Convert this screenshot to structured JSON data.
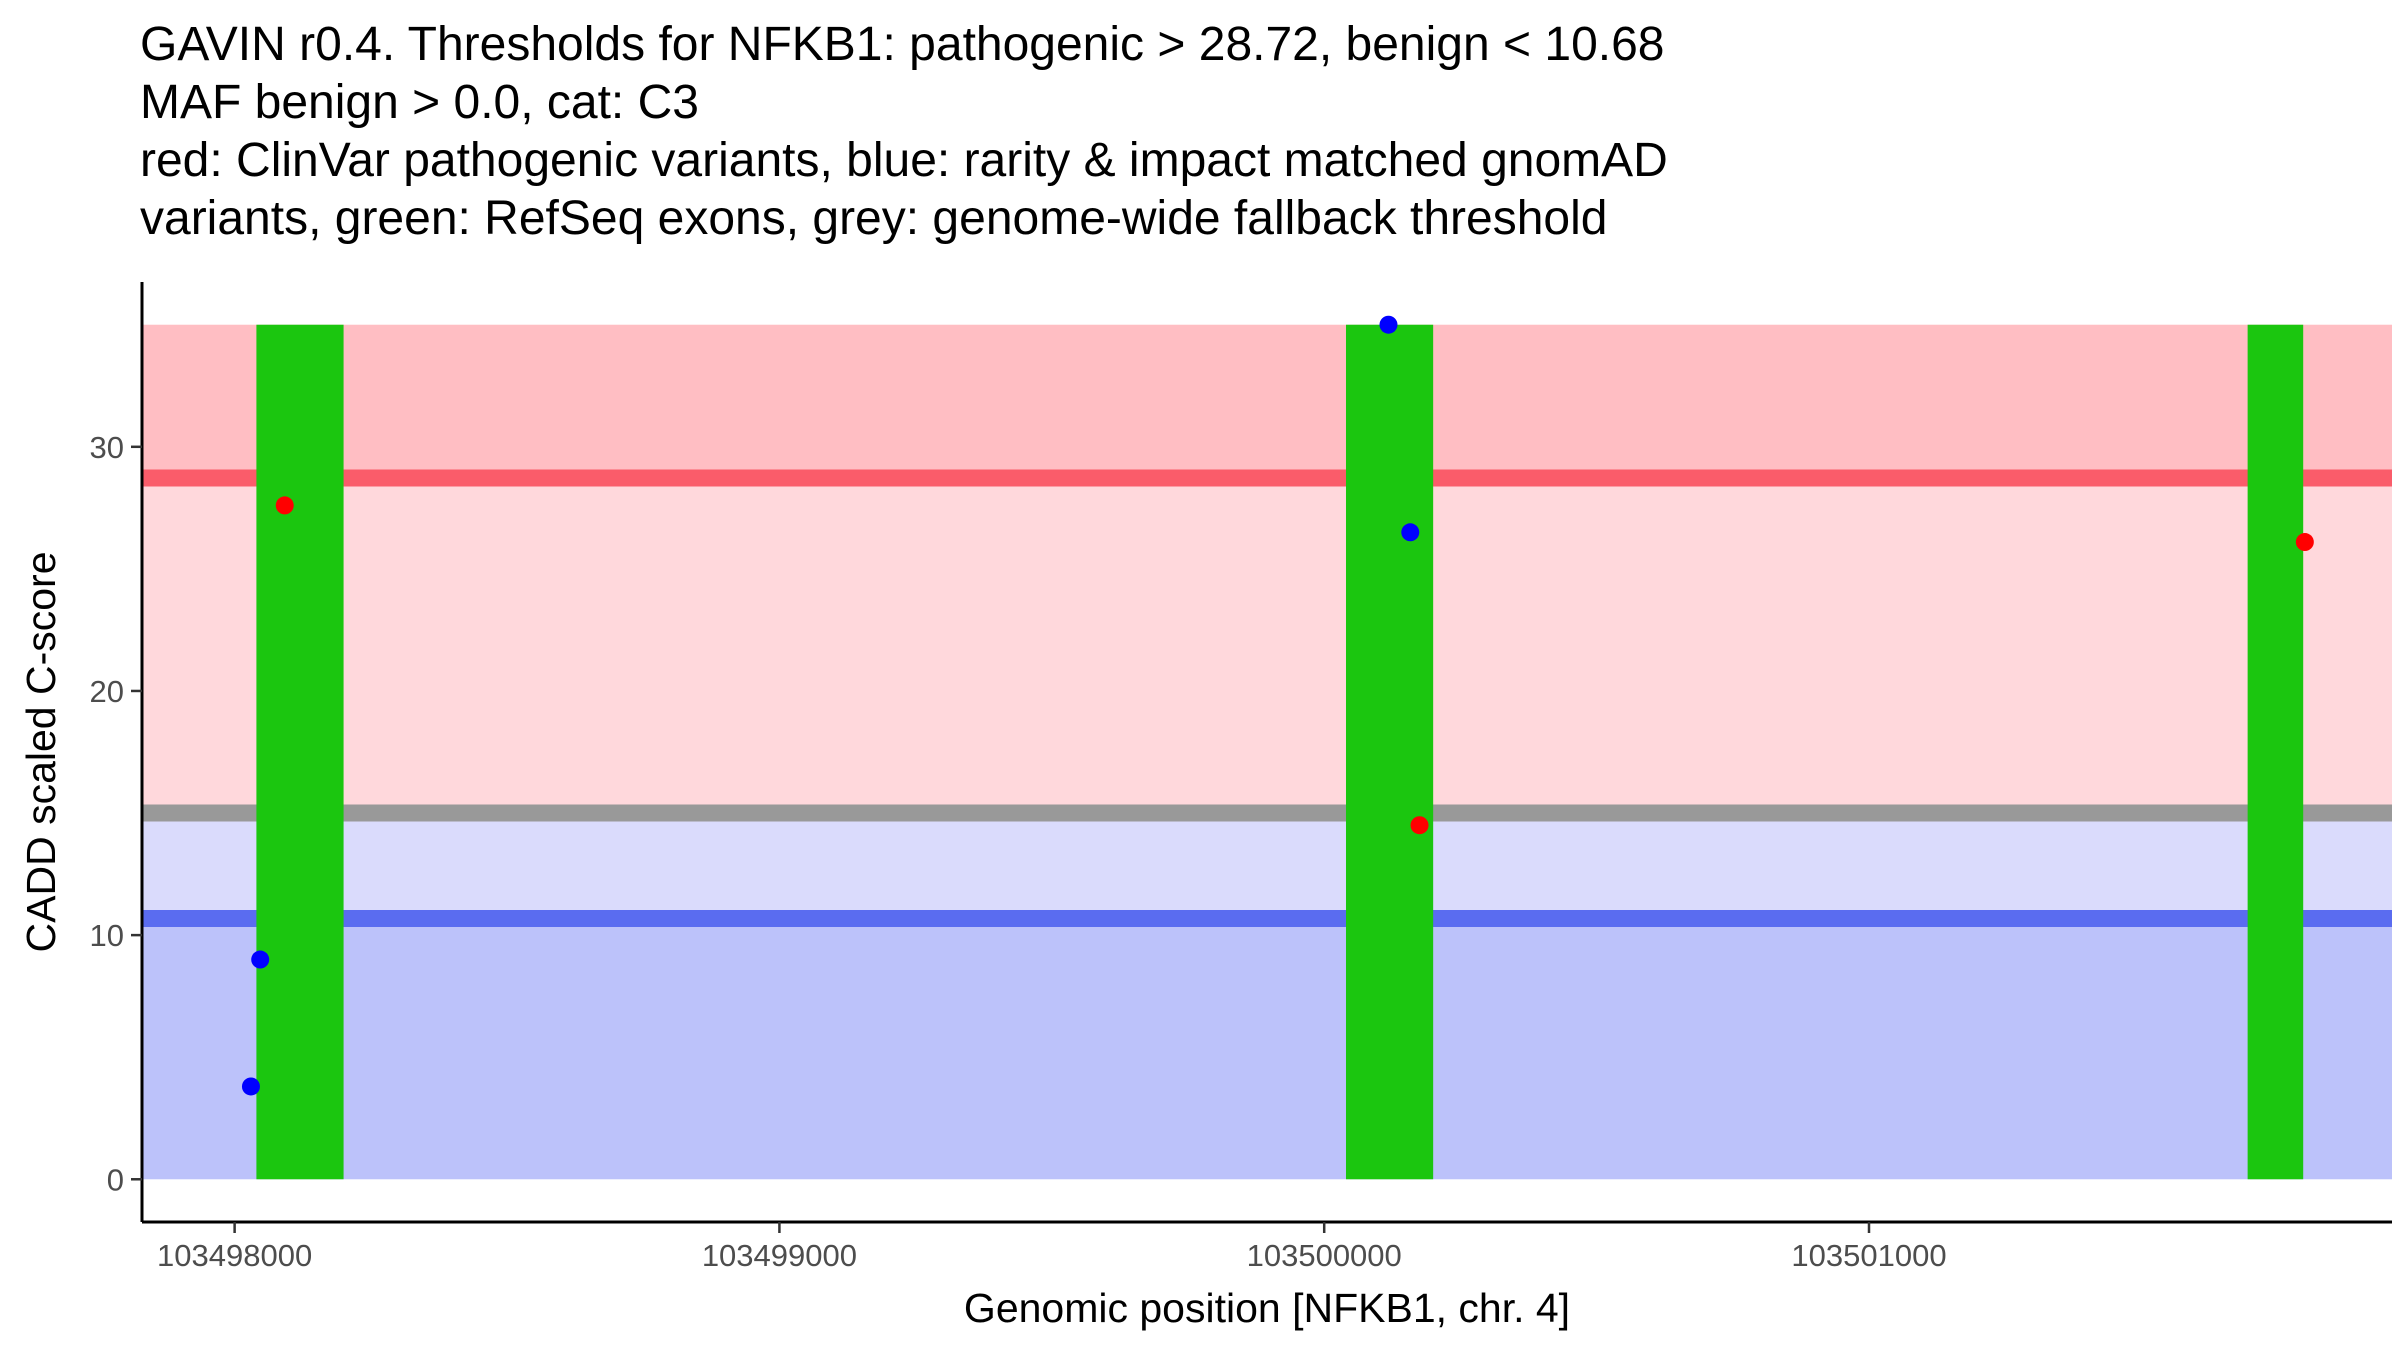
{
  "title_lines": [
    "GAVIN r0.4. Thresholds for NFKB1: pathogenic > 28.72, benign < 10.68",
    "MAF benign > 0.0, cat: C3",
    "red: ClinVar pathogenic variants, blue: rarity & impact matched gnomAD",
    "variants, green: RefSeq exons, grey: genome-wide fallback threshold"
  ],
  "colors": {
    "pathogenic_strong_band": "#ffbec3",
    "pathogenic_band": "#ffd8dc",
    "benign_light_band": "#dadbfc",
    "benign_band": "#bcc2fa",
    "pathogenic_line": "#fa5c6a",
    "fallback_line": "#999999",
    "benign_line": "#5a6cf0",
    "exon": "#1bc60f",
    "clinvar_point": "#ff0000",
    "gnomad_point": "#0000ff"
  },
  "chart_data": {
    "type": "scatter",
    "xlabel": "Genomic position [NFKB1, chr. 4]",
    "ylabel": "CADD scaled C-score",
    "xlim": [
      103497830,
      103501960
    ],
    "ylim": [
      -1.75,
      36.75
    ],
    "x_ticks": [
      103498000,
      103499000,
      103500000,
      103501000
    ],
    "x_tick_labels": [
      "103498000",
      "103499000",
      "103500000",
      "103501000"
    ],
    "y_ticks": [
      0,
      10,
      20,
      30
    ],
    "y_tick_labels": [
      "0",
      "10",
      "20",
      "30"
    ],
    "bands": [
      {
        "name": "pathogenic-strong-region",
        "y0": 28.72,
        "y1": 35,
        "color_key": "pathogenic_strong_band"
      },
      {
        "name": "pathogenic-region",
        "y0": 15,
        "y1": 28.72,
        "color_key": "pathogenic_band"
      },
      {
        "name": "benign-light-region",
        "y0": 10.68,
        "y1": 15,
        "color_key": "benign_light_band"
      },
      {
        "name": "benign-region",
        "y0": 0,
        "y1": 10.68,
        "color_key": "benign_band"
      }
    ],
    "thresholds": [
      {
        "name": "pathogenic-threshold-line",
        "y": 28.72,
        "color_key": "pathogenic_line"
      },
      {
        "name": "fallback-threshold-line",
        "y": 15,
        "color_key": "fallback_line"
      },
      {
        "name": "benign-threshold-line",
        "y": 10.68,
        "color_key": "benign_line"
      }
    ],
    "exons": [
      {
        "start": 103498040,
        "end": 103498200,
        "ymin": 0,
        "ymax": 35
      },
      {
        "start": 103500040,
        "end": 103500200,
        "ymin": 0,
        "ymax": 35
      },
      {
        "start": 103501695,
        "end": 103501797,
        "ymin": 0,
        "ymax": 35
      }
    ],
    "series": [
      {
        "name": "ClinVar pathogenic",
        "color_key": "clinvar_point",
        "points": [
          {
            "x": 103498092,
            "y": 27.6
          },
          {
            "x": 103500175,
            "y": 14.5
          },
          {
            "x": 103501800,
            "y": 26.1
          }
        ]
      },
      {
        "name": "gnomAD matched",
        "color_key": "gnomad_point",
        "points": [
          {
            "x": 103498030,
            "y": 3.8
          },
          {
            "x": 103498047,
            "y": 9.0
          },
          {
            "x": 103500118,
            "y": 35.0
          },
          {
            "x": 103500158,
            "y": 26.5
          }
        ]
      }
    ]
  }
}
